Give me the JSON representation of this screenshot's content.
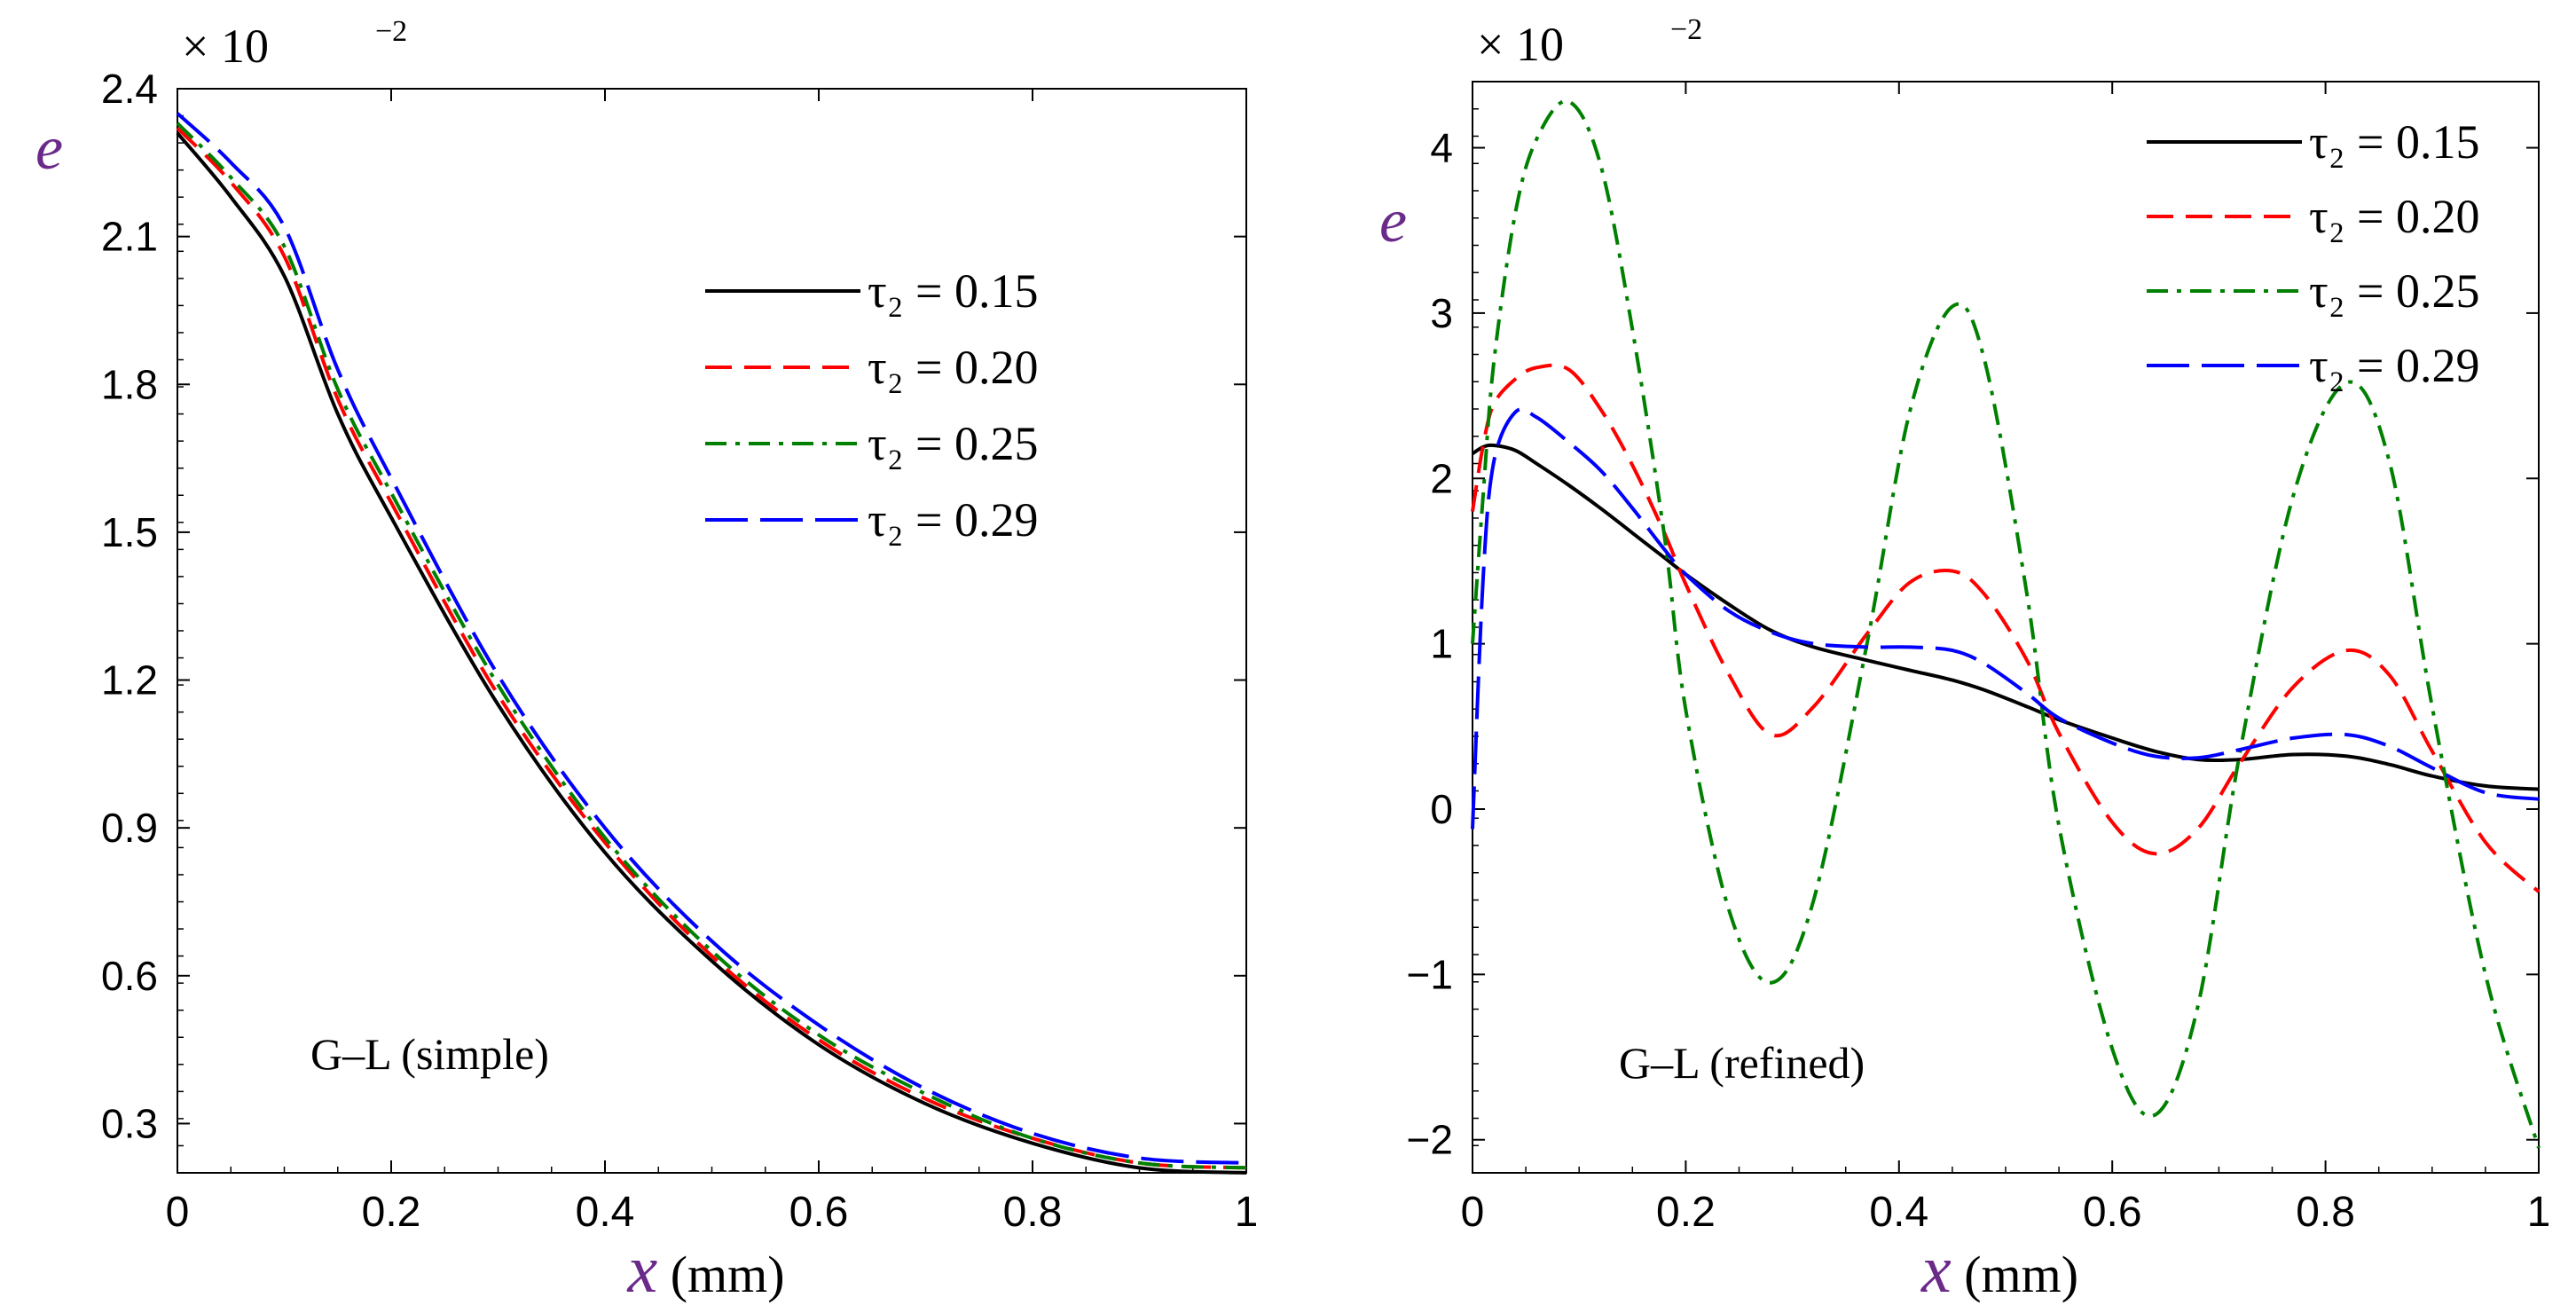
{
  "colors": {
    "tau_015": "#000000",
    "tau_020": "#ff0000",
    "tau_025": "#008000",
    "tau_029": "#0000ff",
    "axis_var": "#6a2a8a"
  },
  "chart_data": [
    {
      "type": "line",
      "title": "",
      "annotation": "G–L (simple)",
      "multiplier": "× 10",
      "multiplier_exp": "−2",
      "ylabel": "e",
      "xlabel_symbol": "x",
      "xlabel_unit": " (mm)",
      "xlim": [
        0,
        1
      ],
      "ylim": [
        0.2,
        2.4
      ],
      "x_ticks": [
        0,
        0.2,
        0.4,
        0.6,
        0.8,
        1
      ],
      "x_tick_labels": [
        "0",
        "0.2",
        "0.4",
        "0.6",
        "0.8",
        "1"
      ],
      "y_ticks": [
        0.3,
        0.6,
        0.9,
        1.2,
        1.5,
        1.8,
        2.1,
        2.4
      ],
      "y_tick_labels": [
        "0.3",
        "0.6",
        "0.9",
        "1.2",
        "1.5",
        "1.8",
        "2.1",
        "2.4"
      ],
      "legend_position": "upper-right",
      "x": [
        0,
        0.05,
        0.1,
        0.15,
        0.2,
        0.3,
        0.4,
        0.5,
        0.6,
        0.7,
        0.8,
        0.9,
        1.0
      ],
      "series": [
        {
          "name": "0.15",
          "legend_label": "τ₂ = 0.15",
          "style": "solid",
          "values": [
            2.31,
            2.18,
            2.02,
            1.74,
            1.53,
            1.15,
            0.85,
            0.63,
            0.46,
            0.34,
            0.26,
            0.21,
            0.2
          ]
        },
        {
          "name": "0.20",
          "legend_label": "τ₂ = 0.20",
          "style": "dash",
          "values": [
            2.32,
            2.21,
            2.06,
            1.77,
            1.56,
            1.17,
            0.87,
            0.64,
            0.47,
            0.35,
            0.27,
            0.22,
            0.21
          ]
        },
        {
          "name": "0.25",
          "legend_label": "τ₂ = 0.25",
          "style": "dashdot",
          "values": [
            2.33,
            2.22,
            2.08,
            1.79,
            1.58,
            1.19,
            0.88,
            0.65,
            0.48,
            0.36,
            0.27,
            0.22,
            0.21
          ]
        },
        {
          "name": "0.29",
          "legend_label": "τ₂ = 0.29",
          "style": "longdash",
          "values": [
            2.35,
            2.25,
            2.12,
            1.83,
            1.61,
            1.21,
            0.9,
            0.67,
            0.5,
            0.37,
            0.28,
            0.23,
            0.22
          ]
        }
      ]
    },
    {
      "type": "line",
      "title": "",
      "annotation": "G–L (refined)",
      "multiplier": "× 10",
      "multiplier_exp": "−2",
      "ylabel": "e",
      "xlabel_symbol": "x",
      "xlabel_unit": " (mm)",
      "xlim": [
        0,
        1
      ],
      "ylim": [
        -2.2,
        4.4
      ],
      "x_ticks": [
        0,
        0.2,
        0.4,
        0.6,
        0.8,
        1
      ],
      "x_tick_labels": [
        "0",
        "0.2",
        "0.4",
        "0.6",
        "0.8",
        "1"
      ],
      "y_ticks": [
        -2,
        -1,
        0,
        1,
        2,
        3,
        4
      ],
      "y_tick_labels": [
        "−2",
        "−1",
        "0",
        "1",
        "2",
        "3",
        "4"
      ],
      "legend_position": "top-right",
      "x": [
        0,
        0.01,
        0.02,
        0.04,
        0.06,
        0.09,
        0.12,
        0.15,
        0.18,
        0.2,
        0.24,
        0.28,
        0.32,
        0.37,
        0.41,
        0.45,
        0.48,
        0.52,
        0.55,
        0.6,
        0.64,
        0.68,
        0.72,
        0.77,
        0.82,
        0.86,
        0.9,
        0.95,
        1.0
      ],
      "series": [
        {
          "name": "0.15",
          "legend_label": "τ₂ = 0.15",
          "style": "solid",
          "values": [
            2.15,
            2.19,
            2.2,
            2.17,
            2.09,
            1.96,
            1.82,
            1.67,
            1.52,
            1.42,
            1.24,
            1.08,
            0.98,
            0.9,
            0.84,
            0.78,
            0.72,
            0.62,
            0.54,
            0.43,
            0.35,
            0.3,
            0.3,
            0.33,
            0.32,
            0.27,
            0.2,
            0.14,
            0.12
          ]
        },
        {
          "name": "0.20",
          "legend_label": "τ₂ = 0.20",
          "style": "dash",
          "values": [
            1.8,
            2.2,
            2.45,
            2.6,
            2.67,
            2.66,
            2.42,
            2.08,
            1.67,
            1.36,
            0.82,
            0.45,
            0.62,
            1.06,
            1.37,
            1.44,
            1.3,
            0.9,
            0.46,
            -0.08,
            -0.27,
            -0.12,
            0.28,
            0.74,
            0.96,
            0.81,
            0.35,
            -0.2,
            -0.5
          ]
        },
        {
          "name": "0.25",
          "legend_label": "τ₂ = 0.25",
          "style": "dashdot",
          "values": [
            1.0,
            1.9,
            2.7,
            3.6,
            4.05,
            4.28,
            3.9,
            2.9,
            1.65,
            0.6,
            -0.6,
            -1.05,
            -0.55,
            1.0,
            2.4,
            3.04,
            2.72,
            1.3,
            -0.1,
            -1.45,
            -1.85,
            -1.2,
            0.35,
            1.9,
            2.58,
            2.1,
            0.62,
            -1.0,
            -2.05
          ]
        },
        {
          "name": "0.29",
          "legend_label": "τ₂ = 0.29",
          "style": "longdash",
          "values": [
            -0.12,
            1.4,
            2.1,
            2.4,
            2.37,
            2.22,
            2.05,
            1.82,
            1.57,
            1.42,
            1.2,
            1.07,
            1.0,
            0.98,
            0.98,
            0.96,
            0.88,
            0.7,
            0.55,
            0.4,
            0.32,
            0.31,
            0.36,
            0.43,
            0.45,
            0.38,
            0.25,
            0.1,
            0.06
          ]
        }
      ]
    }
  ]
}
